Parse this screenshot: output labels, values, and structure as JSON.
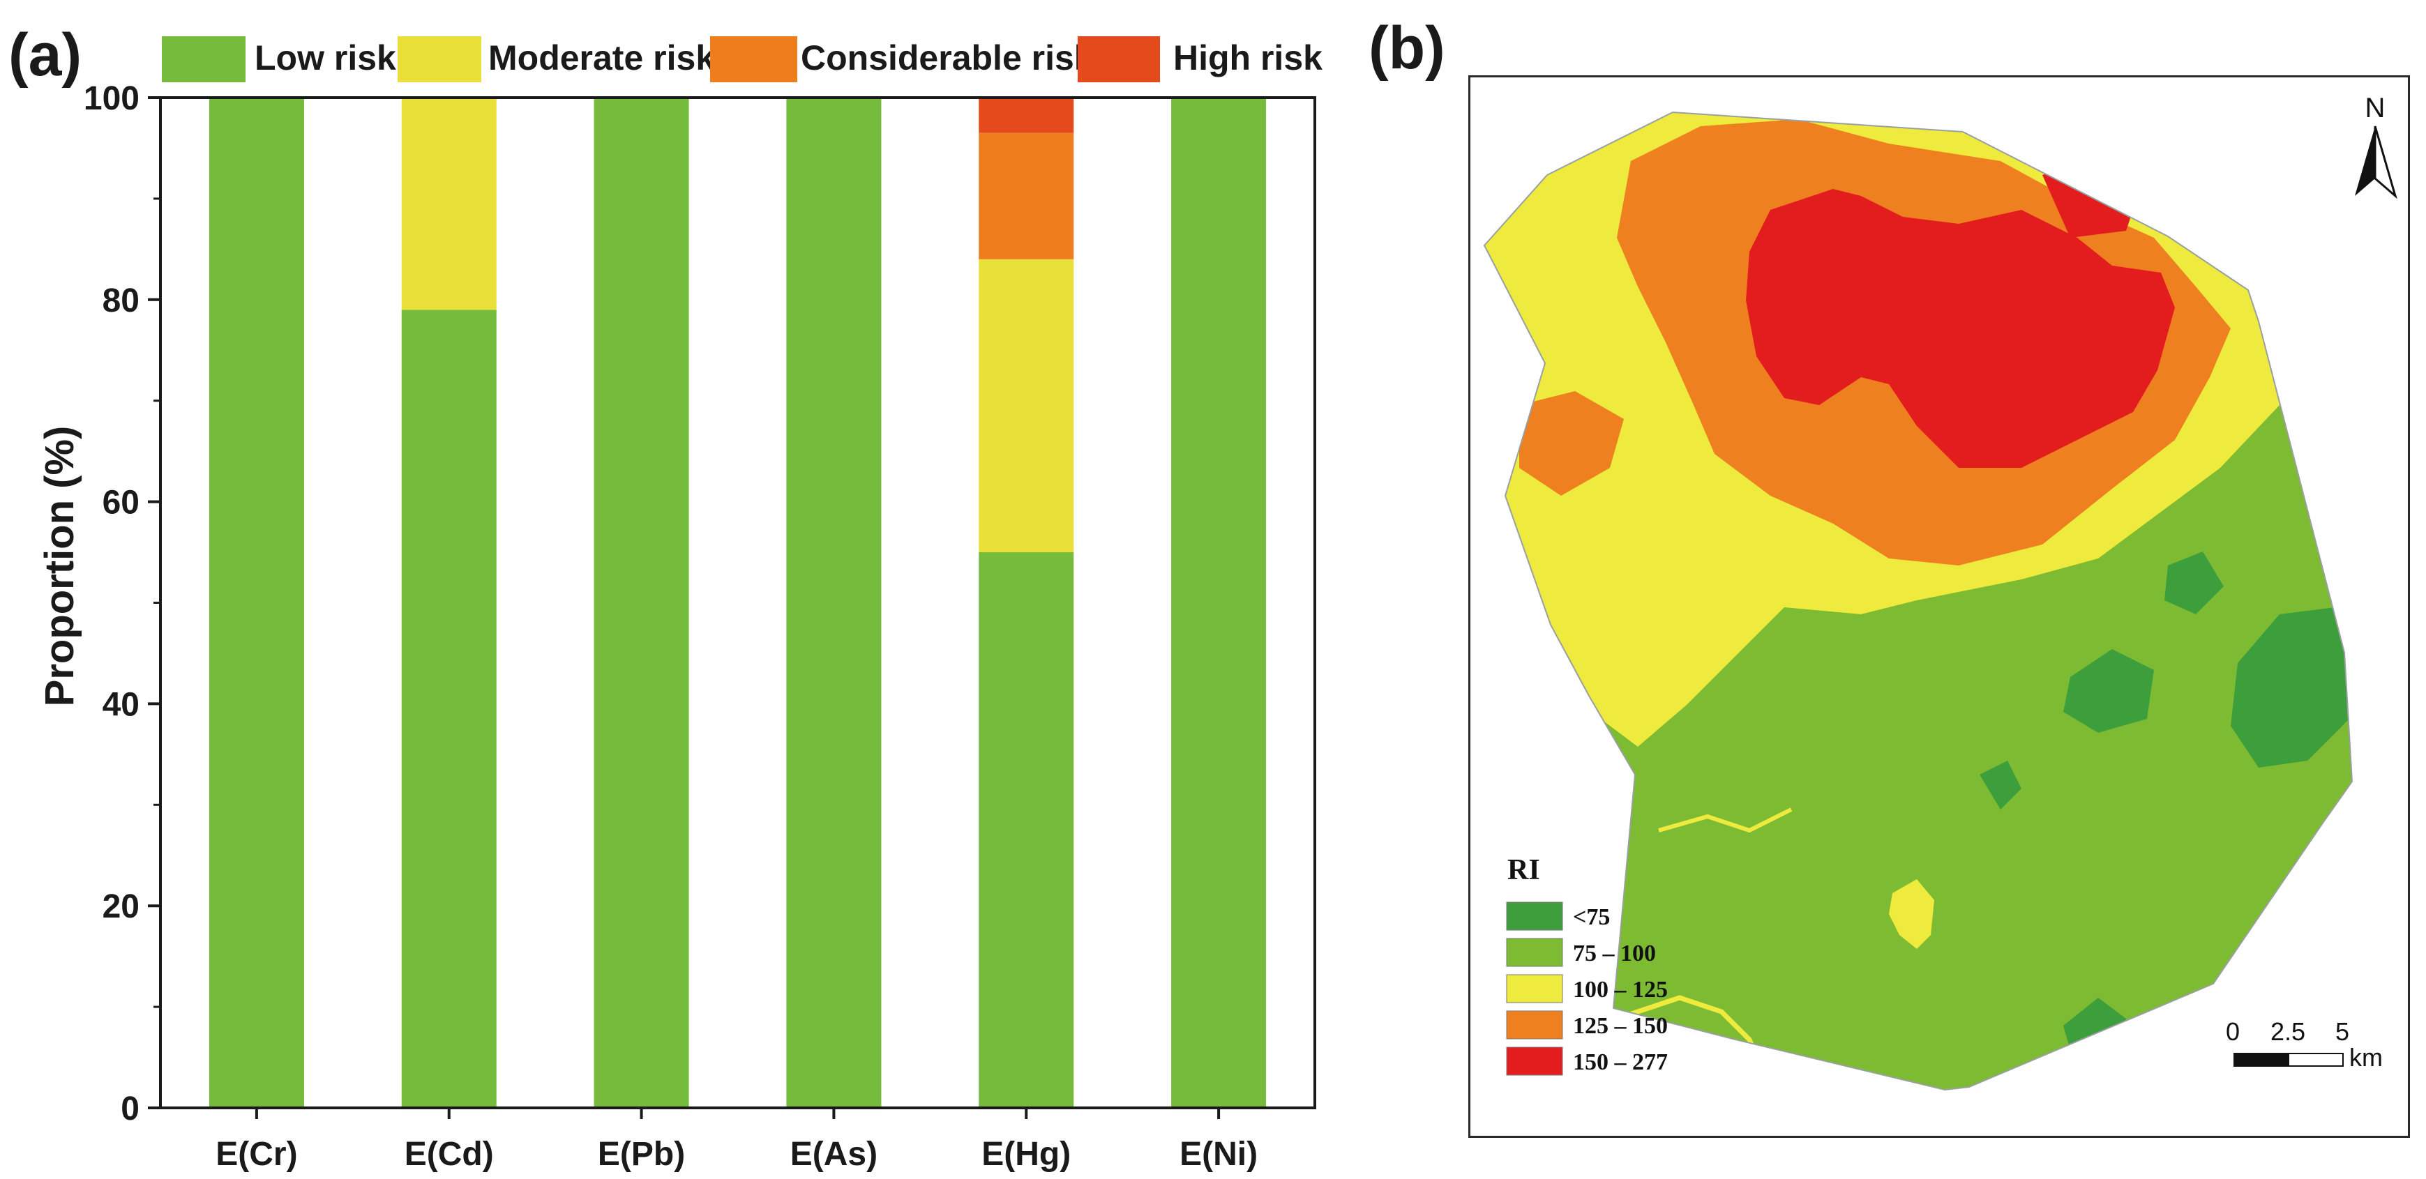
{
  "panel_a": {
    "label": "(a)",
    "chart_data": {
      "type": "bar",
      "stacked": true,
      "categories": [
        "E(Cr)",
        "E(Cd)",
        "E(Pb)",
        "E(As)",
        "E(Hg)",
        "E(Ni)"
      ],
      "series": [
        {
          "name": "Low risk",
          "color": "#76bb3b",
          "values": [
            100,
            79,
            100,
            100,
            55,
            100
          ]
        },
        {
          "name": "Moderate risk",
          "color": "#e8df38",
          "values": [
            0,
            21,
            0,
            0,
            29,
            0
          ]
        },
        {
          "name": "Considerable risk",
          "color": "#ee7d1e",
          "values": [
            0,
            0,
            0,
            0,
            12.5,
            0
          ]
        },
        {
          "name": "High risk",
          "color": "#e44a1c",
          "values": [
            0,
            0,
            0,
            0,
            3.5,
            0
          ]
        }
      ],
      "title": "",
      "xlabel": "",
      "ylabel": "Proportion (%)",
      "ylim": [
        0,
        100
      ],
      "yticks": [
        "0",
        "20",
        "40",
        "60",
        "80",
        "100"
      ],
      "legend_position": "top",
      "grid": false
    }
  },
  "panel_b": {
    "label": "(b)",
    "north_label": "N",
    "legend_title": "RI",
    "legend": [
      {
        "label": "<75",
        "color": "#3d9e3c"
      },
      {
        "label": "75 – 100",
        "color": "#7dbc32"
      },
      {
        "label": "100 – 125",
        "color": "#eeea3e"
      },
      {
        "label": "125 – 150",
        "color": "#ef8020"
      },
      {
        "label": "150 – 277",
        "color": "#e31d1e"
      }
    ],
    "scale": {
      "ticks": [
        "0",
        "2.5",
        "5"
      ],
      "unit": "km"
    }
  }
}
